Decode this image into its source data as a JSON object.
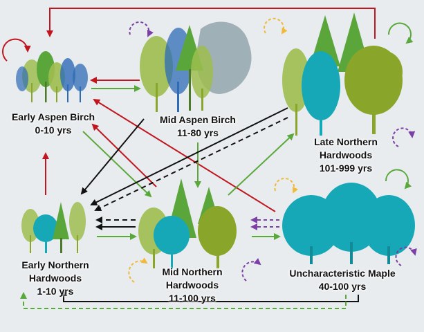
{
  "colors": {
    "background": "#e9ecee",
    "red": "#c0161f",
    "green": "#59a83b",
    "black": "#111111",
    "dashed_yellow": "#f0b93a",
    "dashed_purple": "#7b3fa6",
    "tree_light_green": "#9dbe4f",
    "tree_green": "#5aa63b",
    "tree_olive": "#8aa62a",
    "tree_blue": "#2e6bb6",
    "tree_teal": "#17a8b8",
    "tree_gray": "#9fb0b7"
  },
  "nodes": {
    "early_aspen": {
      "name": "Early Aspen Birch",
      "years": "0-10 yrs"
    },
    "mid_aspen": {
      "name": "Mid Aspen Birch",
      "years": "11-80 yrs"
    },
    "late_northern": {
      "name_line1": "Late Northern",
      "name_line2": "Hardwoods",
      "years": "101-999 yrs"
    },
    "early_northern": {
      "name_line1": "Early Northern",
      "name_line2": "Hardwoods",
      "years": "1-10 yrs"
    },
    "mid_northern": {
      "name_line1": "Mid Northern",
      "name_line2": "Hardwoods",
      "years": "11-100 yrs"
    },
    "uncharacteristic_maple": {
      "name": "Uncharacteristic Maple",
      "years": "40-100 yrs"
    }
  },
  "transitions": [
    {
      "from": "late_northern",
      "to": "early_aspen",
      "color": "red",
      "style": "solid"
    },
    {
      "from": "mid_aspen",
      "to": "early_aspen",
      "color": "red",
      "style": "solid"
    },
    {
      "from": "early_aspen",
      "to": "mid_aspen",
      "color": "green",
      "style": "solid"
    },
    {
      "from": "early_northern",
      "to": "early_aspen",
      "color": "red",
      "style": "solid"
    },
    {
      "from": "early_aspen",
      "to": "mid_northern",
      "color": "green",
      "style": "solid"
    },
    {
      "from": "mid_northern",
      "to": "early_aspen",
      "color": "red",
      "style": "solid"
    },
    {
      "from": "uncharacteristic_maple",
      "to": "early_aspen",
      "color": "red",
      "style": "solid"
    },
    {
      "from": "mid_aspen",
      "to": "early_northern",
      "color": "black",
      "style": "solid"
    },
    {
      "from": "mid_aspen",
      "to": "mid_northern",
      "color": "green",
      "style": "solid"
    },
    {
      "from": "late_northern",
      "to": "early_northern",
      "color": "black",
      "style": "solid"
    },
    {
      "from": "late_northern",
      "to": "early_northern",
      "color": "black",
      "style": "dashed"
    },
    {
      "from": "mid_northern",
      "to": "late_northern",
      "color": "green",
      "style": "solid"
    },
    {
      "from": "mid_northern",
      "to": "early_northern",
      "color": "black",
      "style": "dashed"
    },
    {
      "from": "mid_northern",
      "to": "early_northern",
      "color": "black",
      "style": "solid"
    },
    {
      "from": "early_northern",
      "to": "mid_northern",
      "color": "green",
      "style": "solid"
    },
    {
      "from": "uncharacteristic_maple",
      "to": "mid_northern",
      "color": "purple",
      "style": "dashed"
    },
    {
      "from": "mid_northern",
      "to": "uncharacteristic_maple",
      "color": "green",
      "style": "solid"
    },
    {
      "from": "uncharacteristic_maple",
      "to": "early_northern",
      "color": "black",
      "style": "solid"
    },
    {
      "from": "uncharacteristic_maple",
      "to": "early_northern",
      "color": "green",
      "style": "dashed"
    }
  ]
}
